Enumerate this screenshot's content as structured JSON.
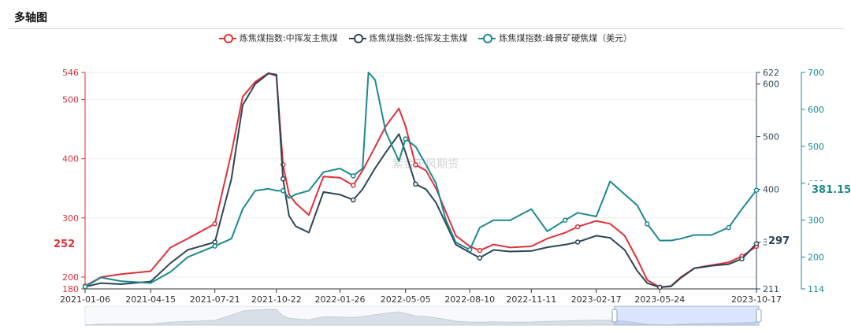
{
  "page": {
    "title": "多轴图"
  },
  "chart_data": {
    "type": "line",
    "watermark": "紫金天风期货",
    "xlabel": "",
    "x_ticks": [
      "2021-01-06",
      "2021-04-15",
      "2021-07-21",
      "2021-10-22",
      "2022-01-26",
      "2022-05-05",
      "2022-08-10",
      "2022-11-11",
      "2023-02-17",
      "2023-05-24",
      "2023-10-17"
    ],
    "x_range": [
      "2021-01-06",
      "2023-10-17"
    ],
    "axes": [
      {
        "id": "left",
        "color": "#e0303a",
        "range": [
          180,
          546
        ],
        "ticks": [
          180,
          200,
          300,
          400,
          500,
          546
        ],
        "current_value": "252"
      },
      {
        "id": "right1",
        "color": "#2f4554",
        "range": [
          211,
          622
        ],
        "ticks": [
          211,
          300,
          400,
          500,
          600,
          622
        ],
        "current_value": "297"
      },
      {
        "id": "right2",
        "color": "#1b8a8f",
        "range": [
          114,
          700
        ],
        "ticks": [
          114,
          200,
          300,
          400,
          500,
          600,
          700
        ],
        "current_value": "381.15"
      }
    ],
    "series": [
      {
        "name": "炼焦煤指数:中挥发主焦煤",
        "axis": "left",
        "color": "#e0303a",
        "x": [
          "2021-01-06",
          "2021-01-30",
          "2021-03-01",
          "2021-04-15",
          "2021-05-15",
          "2021-06-10",
          "2021-07-21",
          "2021-08-15",
          "2021-09-01",
          "2021-09-20",
          "2021-10-10",
          "2021-10-22",
          "2021-11-01",
          "2021-11-10",
          "2021-11-20",
          "2021-12-10",
          "2022-01-01",
          "2022-01-26",
          "2022-02-15",
          "2022-03-01",
          "2022-03-20",
          "2022-04-05",
          "2022-04-25",
          "2022-05-05",
          "2022-05-20",
          "2022-06-05",
          "2022-06-20",
          "2022-07-05",
          "2022-07-20",
          "2022-08-10",
          "2022-08-25",
          "2022-09-15",
          "2022-10-10",
          "2022-11-11",
          "2022-12-05",
          "2023-01-01",
          "2023-01-20",
          "2023-02-17",
          "2023-03-10",
          "2023-04-01",
          "2023-04-20",
          "2023-05-05",
          "2023-05-24",
          "2023-06-10",
          "2023-06-25",
          "2023-07-15",
          "2023-08-10",
          "2023-09-05",
          "2023-09-25",
          "2023-10-17"
        ],
        "values": [
          185,
          200,
          205,
          210,
          250,
          265,
          290,
          410,
          505,
          530,
          545,
          540,
          390,
          340,
          325,
          305,
          370,
          368,
          355,
          380,
          420,
          455,
          485,
          455,
          390,
          380,
          350,
          310,
          270,
          252,
          245,
          255,
          250,
          252,
          265,
          275,
          285,
          295,
          290,
          270,
          230,
          195,
          183,
          185,
          200,
          215,
          220,
          225,
          235,
          252
        ]
      },
      {
        "name": "炼焦煤指数:低挥发主焦煤",
        "axis": "right1",
        "color": "#2f4554",
        "x": [
          "2021-01-06",
          "2021-01-30",
          "2021-03-01",
          "2021-04-15",
          "2021-05-15",
          "2021-06-10",
          "2021-07-21",
          "2021-08-15",
          "2021-09-01",
          "2021-09-20",
          "2021-10-10",
          "2021-10-22",
          "2021-11-01",
          "2021-11-10",
          "2021-11-20",
          "2021-12-10",
          "2022-01-01",
          "2022-01-26",
          "2022-02-15",
          "2022-03-01",
          "2022-03-20",
          "2022-04-05",
          "2022-04-25",
          "2022-05-05",
          "2022-05-20",
          "2022-06-05",
          "2022-06-20",
          "2022-07-05",
          "2022-07-20",
          "2022-08-10",
          "2022-08-25",
          "2022-09-15",
          "2022-10-10",
          "2022-11-11",
          "2022-12-05",
          "2023-01-01",
          "2023-01-20",
          "2023-02-17",
          "2023-03-10",
          "2023-04-01",
          "2023-04-20",
          "2023-05-05",
          "2023-05-24",
          "2023-06-10",
          "2023-06-25",
          "2023-07-15",
          "2023-08-10",
          "2023-09-05",
          "2023-09-25",
          "2023-10-17"
        ],
        "values": [
          215,
          222,
          220,
          225,
          260,
          285,
          300,
          420,
          560,
          600,
          620,
          618,
          420,
          350,
          330,
          318,
          395,
          390,
          380,
          400,
          440,
          470,
          505,
          470,
          410,
          400,
          375,
          335,
          295,
          280,
          270,
          285,
          282,
          283,
          290,
          295,
          300,
          312,
          308,
          285,
          245,
          222,
          214,
          216,
          232,
          250,
          255,
          258,
          268,
          297
        ]
      },
      {
        "name": "炼焦煤指数:峰景矿硬焦煤（美元）",
        "axis": "right2",
        "color": "#1b8a8f",
        "x": [
          "2021-01-06",
          "2021-01-30",
          "2021-03-01",
          "2021-04-15",
          "2021-05-15",
          "2021-06-10",
          "2021-07-21",
          "2021-08-15",
          "2021-09-01",
          "2021-09-20",
          "2021-10-10",
          "2021-10-22",
          "2021-11-01",
          "2021-11-10",
          "2021-11-20",
          "2021-12-10",
          "2022-01-01",
          "2022-01-26",
          "2022-02-15",
          "2022-03-01",
          "2022-03-10",
          "2022-03-20",
          "2022-04-05",
          "2022-04-25",
          "2022-05-05",
          "2022-05-20",
          "2022-06-05",
          "2022-06-20",
          "2022-07-05",
          "2022-07-20",
          "2022-08-10",
          "2022-08-25",
          "2022-09-15",
          "2022-10-10",
          "2022-11-11",
          "2022-12-05",
          "2023-01-01",
          "2023-01-20",
          "2023-02-17",
          "2023-03-10",
          "2023-04-01",
          "2023-04-20",
          "2023-05-05",
          "2023-05-24",
          "2023-06-10",
          "2023-06-25",
          "2023-07-15",
          "2023-08-10",
          "2023-09-05",
          "2023-09-25",
          "2023-10-17"
        ],
        "values": [
          120,
          145,
          135,
          130,
          160,
          200,
          230,
          250,
          330,
          380,
          385,
          380,
          380,
          360,
          370,
          380,
          430,
          440,
          420,
          440,
          700,
          680,
          540,
          460,
          520,
          500,
          450,
          400,
          300,
          240,
          220,
          280,
          300,
          300,
          330,
          270,
          300,
          320,
          310,
          405,
          370,
          340,
          290,
          245,
          245,
          250,
          260,
          260,
          280,
          330,
          381.15
        ]
      }
    ]
  }
}
